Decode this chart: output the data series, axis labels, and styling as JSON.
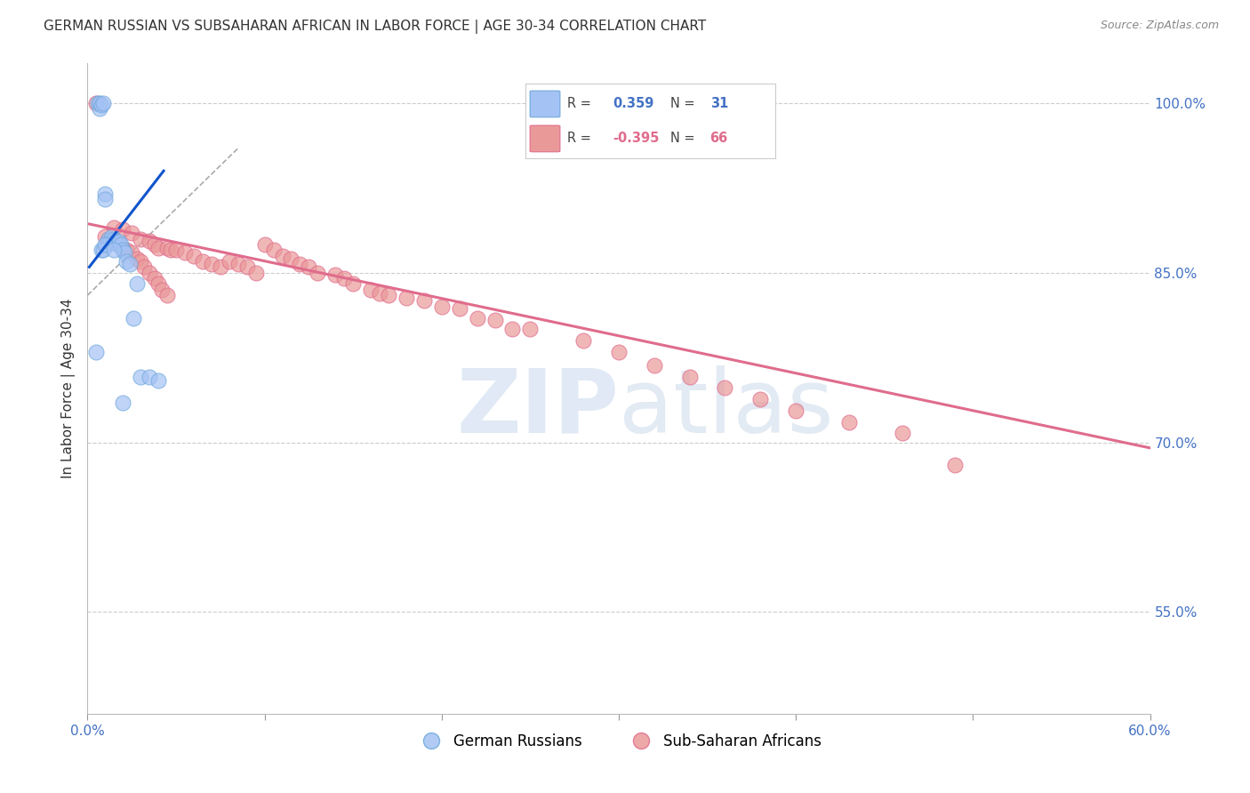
{
  "title": "GERMAN RUSSIAN VS SUBSAHARAN AFRICAN IN LABOR FORCE | AGE 30-34 CORRELATION CHART",
  "source": "Source: ZipAtlas.com",
  "ylabel": "In Labor Force | Age 30-34",
  "legend_blue_label": "German Russians",
  "legend_pink_label": "Sub-Saharan Africans",
  "R_blue": 0.359,
  "N_blue": 31,
  "R_pink": -0.395,
  "N_pink": 66,
  "xlim": [
    0.0,
    0.6
  ],
  "ylim": [
    0.46,
    1.035
  ],
  "right_yticks": [
    1.0,
    0.85,
    0.7,
    0.55
  ],
  "right_yticklabels": [
    "100.0%",
    "85.0%",
    "70.0%",
    "55.0%"
  ],
  "bottom_xticks": [
    0.0,
    0.1,
    0.2,
    0.3,
    0.4,
    0.5,
    0.6
  ],
  "blue_scatter_x": [
    0.005,
    0.006,
    0.007,
    0.007,
    0.008,
    0.009,
    0.01,
    0.01,
    0.011,
    0.012,
    0.013,
    0.014,
    0.015,
    0.016,
    0.017,
    0.018,
    0.019,
    0.02,
    0.021,
    0.022,
    0.024,
    0.026,
    0.028,
    0.03,
    0.035,
    0.04,
    0.008,
    0.009,
    0.01,
    0.015,
    0.02
  ],
  "blue_scatter_y": [
    0.78,
    1.0,
    0.995,
    1.0,
    0.998,
    1.0,
    0.92,
    0.915,
    0.875,
    0.88,
    0.878,
    0.882,
    0.88,
    0.878,
    0.875,
    0.877,
    0.875,
    0.87,
    0.868,
    0.86,
    0.858,
    0.81,
    0.84,
    0.758,
    0.758,
    0.755,
    0.87,
    0.87,
    0.875,
    0.87,
    0.735
  ],
  "pink_scatter_x": [
    0.005,
    0.015,
    0.02,
    0.025,
    0.03,
    0.035,
    0.038,
    0.04,
    0.045,
    0.047,
    0.05,
    0.055,
    0.06,
    0.065,
    0.07,
    0.075,
    0.08,
    0.085,
    0.09,
    0.095,
    0.1,
    0.105,
    0.11,
    0.115,
    0.12,
    0.125,
    0.13,
    0.14,
    0.145,
    0.15,
    0.16,
    0.165,
    0.17,
    0.18,
    0.19,
    0.2,
    0.21,
    0.22,
    0.23,
    0.24,
    0.01,
    0.012,
    0.015,
    0.018,
    0.02,
    0.022,
    0.025,
    0.028,
    0.03,
    0.032,
    0.035,
    0.038,
    0.04,
    0.042,
    0.045,
    0.25,
    0.28,
    0.3,
    0.32,
    0.34,
    0.36,
    0.38,
    0.4,
    0.43,
    0.46,
    0.49
  ],
  "pink_scatter_y": [
    1.0,
    0.89,
    0.888,
    0.885,
    0.88,
    0.878,
    0.875,
    0.872,
    0.872,
    0.87,
    0.87,
    0.868,
    0.865,
    0.86,
    0.858,
    0.855,
    0.86,
    0.858,
    0.855,
    0.85,
    0.875,
    0.87,
    0.865,
    0.862,
    0.858,
    0.855,
    0.85,
    0.848,
    0.845,
    0.84,
    0.835,
    0.832,
    0.83,
    0.828,
    0.825,
    0.82,
    0.818,
    0.81,
    0.808,
    0.8,
    0.882,
    0.88,
    0.878,
    0.875,
    0.872,
    0.87,
    0.868,
    0.862,
    0.86,
    0.855,
    0.85,
    0.845,
    0.84,
    0.835,
    0.83,
    0.8,
    0.79,
    0.78,
    0.768,
    0.758,
    0.748,
    0.738,
    0.728,
    0.718,
    0.708,
    0.68
  ],
  "blue_line_x": [
    0.001,
    0.043
  ],
  "blue_line_y": [
    0.855,
    0.94
  ],
  "pink_line_x": [
    0.001,
    0.6
  ],
  "pink_line_y": [
    0.893,
    0.695
  ],
  "dash_line_x": [
    0.0,
    0.085
  ],
  "dash_line_y": [
    0.83,
    0.96
  ],
  "background_color": "#ffffff",
  "blue_color": "#a4c2f4",
  "blue_scatter_edge": "#6fa8dc",
  "blue_line_color": "#1155cc",
  "pink_color": "#ea9999",
  "pink_scatter_edge": "#e06c8c",
  "pink_line_color": "#e06c8c",
  "watermark_zip": "ZIP",
  "watermark_atlas": "atlas",
  "title_fontsize": 11,
  "tick_label_color": "#4472c4"
}
